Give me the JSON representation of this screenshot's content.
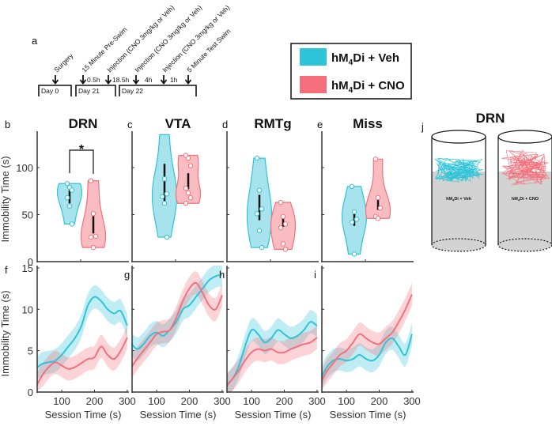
{
  "colors": {
    "veh": "#2ec4d8",
    "veh_fill": "#a6e3ec",
    "cno": "#f5707c",
    "cno_fill": "#f9bcc1"
  },
  "panel_labels": {
    "a": "a",
    "b": "b",
    "c": "c",
    "d": "d",
    "e": "e",
    "f": "f",
    "g": "g",
    "h": "h",
    "i": "i",
    "j": "j"
  },
  "timeline": {
    "events": [
      "Surgery",
      "15 Minute Pre-Swim",
      "Injection (CNO 3mg/kg or Veh)",
      "Injection (CNO 3mg/kg or Veh)",
      "Injection (CNO 3mg/kg or Veh)",
      "5 Minute Test Swim"
    ],
    "intervals": [
      "0.5h",
      "18.5h",
      "4h",
      "1h"
    ],
    "days": [
      "Day 0",
      "Day 21",
      "Day 22"
    ]
  },
  "legend": {
    "veh": {
      "pre": "hM",
      "sub": "4",
      "post": "Di + Veh"
    },
    "cno": {
      "pre": "hM",
      "sub": "4",
      "post": "Di + CNO"
    }
  },
  "significance": "*",
  "chart_data": [
    {
      "type": "violin",
      "ylabel": "Immobility  Time (s)",
      "ylim": [
        0,
        135
      ],
      "yticks": [
        "0",
        "50",
        "100"
      ],
      "panels": [
        {
          "title": "DRN",
          "veh": {
            "points": [
              83,
              79,
              76,
              68,
              59,
              40
            ],
            "iqr": [
              62,
              76
            ]
          },
          "cno": {
            "points": [
              86,
              51,
              27,
              26,
              15
            ],
            "iqr": [
              30,
              50
            ]
          }
        },
        {
          "title": "VTA",
          "veh": {
            "points": [
              135,
              88,
              72,
              69,
              62,
              26
            ],
            "iqr": [
              63,
              104
            ]
          },
          "cno": {
            "points": [
              113,
              110,
              102,
              78,
              73,
              68,
              62
            ],
            "iqr": [
              77,
              94
            ]
          }
        },
        {
          "title": "RMTg",
          "veh": {
            "points": [
              110,
              76,
              56,
              51,
              33,
              15
            ],
            "iqr": [
              44,
              71
            ]
          },
          "cno": {
            "points": [
              63,
              48,
              40,
              36,
              19,
              13
            ],
            "iqr": [
              37,
              48
            ]
          }
        },
        {
          "title": "Miss",
          "veh": {
            "points": [
              80,
              53,
              45,
              42,
              8
            ],
            "iqr": [
              38,
              53
            ]
          },
          "cno": {
            "points": [
              109,
              68,
              57,
              48,
              46
            ],
            "iqr": [
              55,
              70
            ]
          }
        }
      ]
    },
    {
      "type": "line",
      "xlabel": "Session Time (s)",
      "ylabel": "Immobility Time (s)",
      "xlim": [
        25,
        305
      ],
      "ylim": [
        0,
        16
      ],
      "xticks": [
        "100",
        "200",
        "300"
      ],
      "yticks": [
        "0",
        "5",
        "10",
        "15"
      ],
      "x": [
        20,
        40,
        60,
        80,
        100,
        120,
        140,
        160,
        180,
        200,
        220,
        240,
        260,
        280,
        300
      ],
      "panels": [
        {
          "veh": [
            2.8,
            3.4,
            3.6,
            3.8,
            4.5,
            5.5,
            6.5,
            8,
            10.5,
            11.5,
            11,
            10,
            9.5,
            9.8,
            8
          ],
          "cno": [
            0.5,
            2,
            3,
            3.6,
            3.2,
            2.8,
            3,
            3.5,
            4,
            4.2,
            5.5,
            4.5,
            4,
            5,
            6.6
          ]
        },
        {
          "veh": [
            6,
            5.2,
            5.8,
            6.8,
            7.2,
            6.8,
            7.5,
            8.5,
            10,
            10.5,
            11.5,
            12.5,
            13.5,
            14,
            14.2
          ],
          "cno": [
            2.8,
            4,
            5,
            6,
            7,
            7.3,
            7.5,
            9,
            11,
            12.5,
            13.2,
            12,
            10.5,
            10,
            11.7
          ]
        },
        {
          "veh": [
            0.8,
            1.5,
            3,
            5.5,
            7.5,
            7,
            6,
            6.5,
            7.5,
            7,
            6.5,
            6.8,
            7.5,
            8.5,
            8
          ],
          "cno": [
            0.5,
            1.5,
            2.5,
            3.8,
            4.8,
            5.2,
            5,
            5.2,
            4.8,
            4.8,
            5.2,
            5.5,
            5.8,
            6,
            6.6
          ]
        },
        {
          "veh": [
            1.5,
            3,
            3.8,
            4,
            3.8,
            4,
            4.5,
            4,
            3.8,
            4.5,
            6,
            6.5,
            5.5,
            4.5,
            7
          ],
          "cno": [
            1,
            2.5,
            3.5,
            4.5,
            5,
            6,
            7,
            6.5,
            6,
            5.8,
            6.5,
            7.2,
            8.5,
            10,
            11.8
          ]
        }
      ]
    }
  ],
  "tracking": {
    "title": "DRN",
    "veh_label": {
      "pre": "hM",
      "sub": "4",
      "post": "Di + Veh"
    },
    "cno_label": {
      "pre": "hM",
      "sub": "4",
      "post": "Di + CNO"
    }
  }
}
